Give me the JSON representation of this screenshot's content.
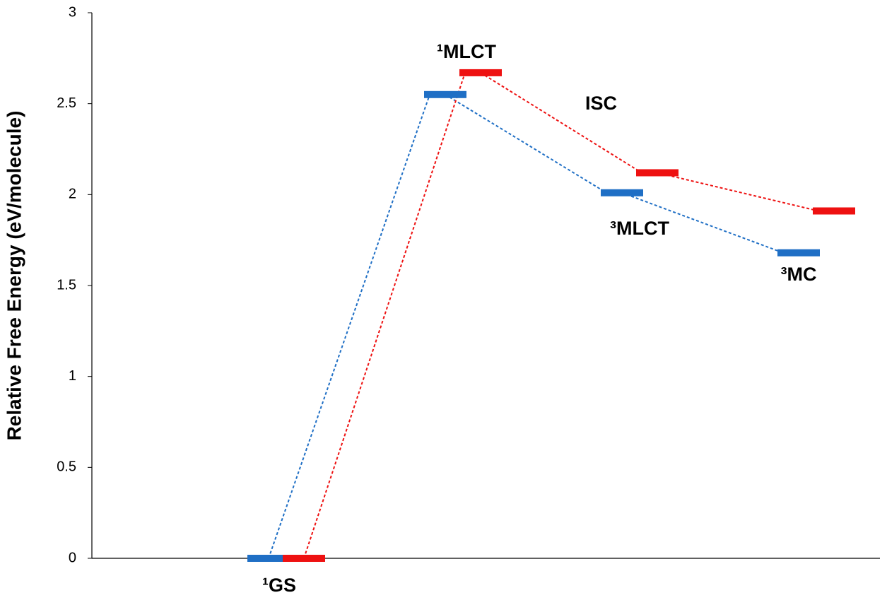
{
  "chart_data": {
    "type": "energy-level",
    "y_label": "Relative Free Energy (eV/molecule)",
    "categories": [
      "¹GS",
      "¹MLCT",
      "³MLCT",
      "³MC"
    ],
    "series": [
      {
        "color": "#1f6fc5",
        "values": [
          0,
          2.55,
          2.01,
          1.68
        ]
      },
      {
        "color": "#ee1111",
        "values": [
          0,
          2.67,
          2.12,
          1.91
        ]
      }
    ],
    "annotations": [
      "ISC"
    ],
    "ylim": [
      0,
      3
    ],
    "yticks": [
      0,
      0.5,
      1,
      1.5,
      2,
      2.5,
      3
    ],
    "grid": false
  }
}
